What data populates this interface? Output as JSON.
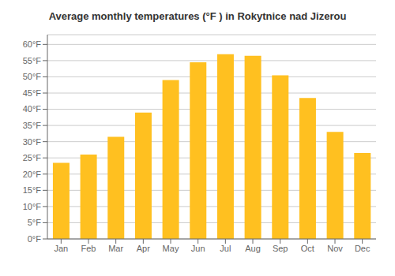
{
  "chart_data": {
    "type": "bar",
    "title": "Average monthly temperatures (°F ) in Rokytnice nad Jizerou",
    "categories": [
      "Jan",
      "Feb",
      "Mar",
      "Apr",
      "May",
      "Jun",
      "Jul",
      "Aug",
      "Sep",
      "Oct",
      "Nov",
      "Dec"
    ],
    "values": [
      23.5,
      26.0,
      31.5,
      39.0,
      49.0,
      54.5,
      57.0,
      56.5,
      50.5,
      43.5,
      33.0,
      26.5
    ],
    "color": "#FFC020",
    "ylim": [
      0,
      63
    ],
    "yticks": [
      {
        "value": 0,
        "label": "0°F"
      },
      {
        "value": 5,
        "label": "5°F"
      },
      {
        "value": 10,
        "label": "10°F"
      },
      {
        "value": 15,
        "label": "15°F"
      },
      {
        "value": 20,
        "label": "20°F"
      },
      {
        "value": 25,
        "label": "25°F"
      },
      {
        "value": 30,
        "label": "30°F"
      },
      {
        "value": 35,
        "label": "35°F"
      },
      {
        "value": 40,
        "label": "40°F"
      },
      {
        "value": 45,
        "label": "45°F"
      },
      {
        "value": 50,
        "label": "50°F"
      },
      {
        "value": 55,
        "label": "55°F"
      },
      {
        "value": 60,
        "label": "60°F"
      }
    ],
    "grid": true
  }
}
